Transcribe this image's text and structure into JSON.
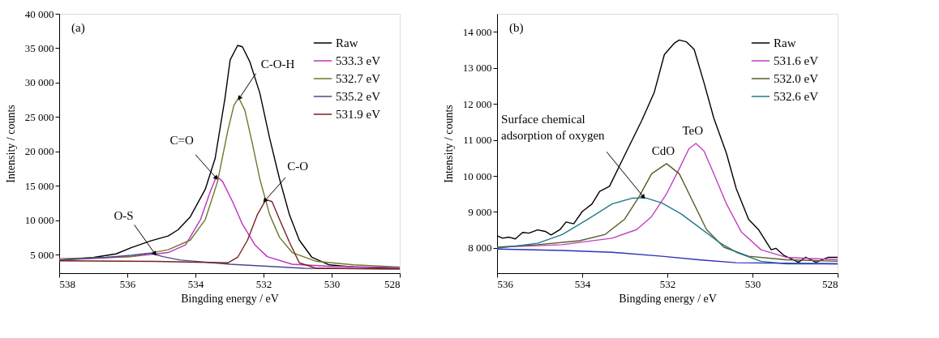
{
  "chart_data": [
    {
      "type": "line",
      "xlabel": "Bingding energy / eV",
      "ylabel": "Intensity / counts",
      "xlim": [
        538,
        528
      ],
      "xticks": [
        538,
        536,
        534,
        532,
        530,
        528
      ],
      "ylim": [
        2300,
        40000
      ],
      "yticks": [
        {
          "value": 5000,
          "label": "5 000"
        },
        {
          "value": 10000,
          "label": "10 000"
        },
        {
          "value": 15000,
          "label": "15 000"
        },
        {
          "value": 20000,
          "label": "20 000"
        },
        {
          "value": 25000,
          "label": "25 000"
        },
        {
          "value": 30000,
          "label": "30 000"
        },
        {
          "value": 35000,
          "label": "35 000"
        },
        {
          "value": 40000,
          "label": "40 000"
        }
      ],
      "grid": false,
      "legend": "top right",
      "line_style": "solid",
      "marker": "none",
      "annotations": [
        "(a)",
        {
          "text": "C-O-H",
          "x": 532.7,
          "y": 27800
        },
        {
          "text": "C=O",
          "x": 533.4,
          "y": 16200
        },
        {
          "text": "C-O",
          "x": 531.95,
          "y": 12900
        },
        {
          "text": "O-S",
          "x": 535.2,
          "y": 5200
        }
      ],
      "series": [
        {
          "name": "Raw",
          "color": "#000000",
          "x": [
            538,
            536.98,
            536.33,
            535.89,
            535.31,
            534.8,
            534.51,
            534.15,
            533.71,
            533.42,
            533.13,
            532.98,
            532.76,
            532.62,
            532.4,
            532.11,
            531.82,
            531.53,
            531.24,
            530.95,
            530.58,
            530.07,
            529.35,
            528
          ],
          "values": [
            4200,
            4600,
            5100,
            6000,
            7000,
            7700,
            8600,
            10500,
            14500,
            19000,
            27800,
            33300,
            35400,
            35200,
            33000,
            28500,
            21900,
            16000,
            10800,
            7100,
            4600,
            3500,
            3200,
            3000
          ]
        },
        {
          "name": "533.3 eV",
          "color": "#c030c0",
          "x": [
            538,
            535.89,
            534.8,
            534.29,
            533.85,
            533.56,
            533.38,
            533.2,
            532.91,
            532.62,
            532.25,
            531.89,
            531.16,
            530.07,
            528
          ],
          "values": [
            4200,
            4700,
            5300,
            6400,
            10100,
            14200,
            16400,
            15600,
            12700,
            9400,
            6400,
            4700,
            3600,
            3300,
            3100
          ]
        },
        {
          "name": "532.7 eV",
          "color": "#6b7a2a",
          "x": [
            538,
            535.89,
            534.8,
            534.15,
            533.71,
            533.35,
            533.05,
            532.87,
            532.73,
            532.55,
            532.33,
            532.11,
            531.82,
            531.53,
            531.16,
            530.44,
            529.35,
            528
          ],
          "values": [
            4400,
            4700,
            5700,
            7100,
            10100,
            15600,
            23000,
            26700,
            27800,
            26000,
            21200,
            16000,
            10800,
            7500,
            5300,
            4000,
            3500,
            3200
          ]
        },
        {
          "name": "535.2 eV",
          "color": "#4a4a8a",
          "x": [
            538,
            536.62,
            535.89,
            535.38,
            535.24,
            534.95,
            534.44,
            533.71,
            532.98,
            531.89,
            530.8,
            528
          ],
          "values": [
            4200,
            4600,
            4900,
            5200,
            5100,
            4700,
            4200,
            3900,
            3600,
            3300,
            3000,
            2900
          ]
        },
        {
          "name": "531.9 eV",
          "color": "#7a2020",
          "x": [
            538,
            535.16,
            533.05,
            532.76,
            532.47,
            532.18,
            531.93,
            531.75,
            531.53,
            531.24,
            530.95,
            530.44,
            528
          ],
          "values": [
            4100,
            4000,
            3800,
            4600,
            7100,
            10800,
            13000,
            12700,
            10100,
            6800,
            3800,
            3000,
            2900
          ]
        }
      ]
    },
    {
      "type": "line",
      "xlabel": "Bingding energy / eV",
      "ylabel": "Intensity / counts",
      "xlim": [
        536,
        528
      ],
      "xticks": [
        536,
        534,
        532,
        530,
        528
      ],
      "ylim": [
        7300,
        14500
      ],
      "yticks": [
        {
          "value": 8000,
          "label": "8 000"
        },
        {
          "value": 9000,
          "label": "9 000"
        },
        {
          "value": 10000,
          "label": "10 000"
        },
        {
          "value": 11000,
          "label": "11 000"
        },
        {
          "value": 12000,
          "label": "12 000"
        },
        {
          "value": 13000,
          "label": "13 000"
        },
        {
          "value": 14000,
          "label": "14 000"
        }
      ],
      "grid": false,
      "legend": "top right",
      "line_style": "solid",
      "marker": "none",
      "annotations": [
        "(b)",
        {
          "text": "Surface chemical\nadsorption of oxygen",
          "x": 532.57,
          "y": 9430
        },
        {
          "text": "CdO",
          "x": 532.02,
          "y": 10340
        },
        {
          "text": "TeO",
          "x": 531.33,
          "y": 10900
        }
      ],
      "series": [
        {
          "name": "Raw",
          "color": "#000000",
          "x": [
            536,
            535.87,
            535.72,
            535.57,
            535.4,
            535.25,
            535.05,
            534.87,
            534.73,
            534.52,
            534.38,
            534.2,
            534,
            533.77,
            533.59,
            533.36,
            533.07,
            532.6,
            532.31,
            532.07,
            531.84,
            531.72,
            531.55,
            531.37,
            531.14,
            530.91,
            530.61,
            530.38,
            530.09,
            529.86,
            529.56,
            529.45,
            529.27,
            528.92,
            528.75,
            528.51,
            528.22,
            528
          ],
          "values": [
            8340,
            8270,
            8300,
            8250,
            8430,
            8410,
            8500,
            8460,
            8360,
            8510,
            8720,
            8670,
            9010,
            9220,
            9570,
            9710,
            10410,
            11540,
            12310,
            13370,
            13680,
            13770,
            13720,
            13510,
            12590,
            11610,
            10620,
            9640,
            8790,
            8510,
            7950,
            7990,
            7800,
            7600,
            7740,
            7600,
            7740,
            7740
          ]
        },
        {
          "name": "531.6 eV",
          "color": "#c040c0",
          "x": [
            536,
            534.47,
            533.3,
            532.72,
            532.37,
            532.02,
            531.72,
            531.49,
            531.33,
            531.14,
            530.91,
            530.61,
            530.26,
            529.8,
            529.21,
            528
          ],
          "values": [
            8020,
            8090,
            8270,
            8510,
            8870,
            9500,
            10200,
            10760,
            10900,
            10690,
            10060,
            9220,
            8440,
            7950,
            7740,
            7670
          ]
        },
        {
          "name": "532.0 eV",
          "color": "#5a5a2a",
          "x": [
            536,
            535.05,
            534.06,
            533.47,
            533.01,
            532.66,
            532.37,
            532.02,
            531.72,
            531.43,
            531.08,
            530.67,
            530.09,
            529.21,
            528
          ],
          "values": [
            8020,
            8090,
            8200,
            8370,
            8790,
            9430,
            10060,
            10340,
            10060,
            9360,
            8510,
            8020,
            7770,
            7670,
            7630
          ]
        },
        {
          "name": "532.6 eV",
          "color": "#207a8a",
          "x": [
            536,
            535.05,
            534.47,
            533.88,
            533.3,
            532.83,
            532.51,
            532.13,
            531.67,
            531.26,
            530.79,
            530.38,
            529.8,
            529.21,
            528
          ],
          "values": [
            7990,
            8130,
            8370,
            8790,
            9220,
            9380,
            9390,
            9250,
            8940,
            8580,
            8160,
            7880,
            7630,
            7560,
            7560
          ]
        },
        {
          "color": "#3030c0",
          "x": [
            536,
            534.47,
            533.3,
            532.13,
            531.26,
            530.38,
            528
          ],
          "values": [
            7970,
            7930,
            7880,
            7770,
            7670,
            7590,
            7560
          ]
        }
      ]
    }
  ]
}
